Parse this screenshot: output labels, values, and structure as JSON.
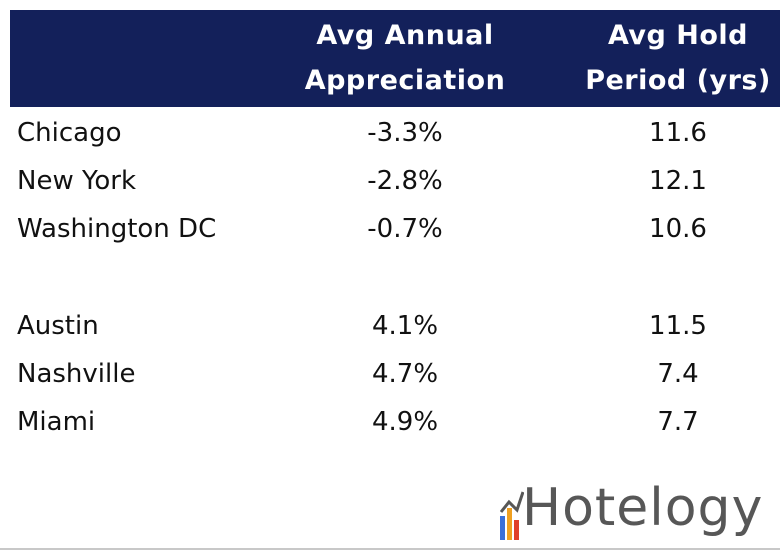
{
  "table": {
    "columns": [
      [
        "Avg Annual",
        "Appreciation"
      ],
      [
        "Avg Hold",
        "Period (yrs)"
      ]
    ],
    "groups": [
      [
        [
          "Chicago",
          "-3.3%",
          "11.6"
        ],
        [
          "New York",
          "-2.8%",
          "12.1"
        ],
        [
          "Washington DC",
          "-0.7%",
          "10.6"
        ]
      ],
      [
        [
          "Austin",
          "4.1%",
          "11.5"
        ],
        [
          "Nashville",
          "4.7%",
          "7.4"
        ],
        [
          "Miami",
          "4.9%",
          "7.7"
        ]
      ]
    ]
  },
  "logo": {
    "text": "Hotelogy"
  }
}
